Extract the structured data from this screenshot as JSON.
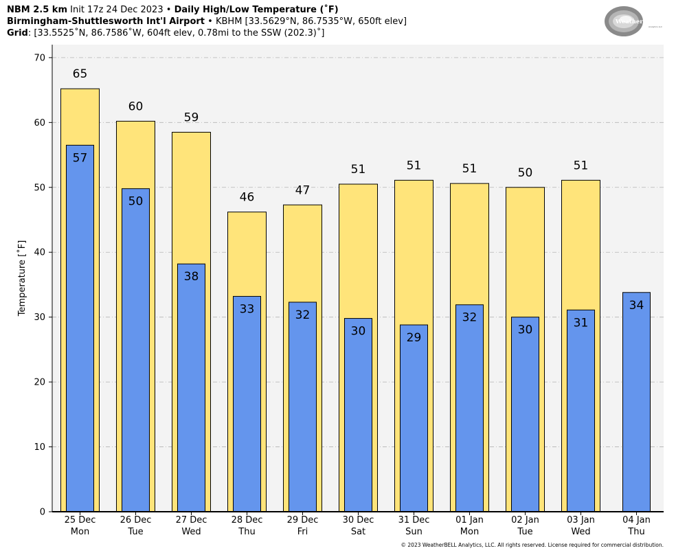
{
  "header": {
    "line1": {
      "model": "NBM 2.5 km",
      "init": "Init 17z 24 Dec 2023",
      "sep": "•",
      "title": "Daily High/Low Temperature (˚F)"
    },
    "line2": {
      "station": "Birmingham-Shuttlesworth Int'l Airport",
      "sep": "•",
      "details": "KBHM [33.5629°N, 86.7535°W, 650ft elev]"
    },
    "line3": {
      "label": "Grid",
      "details": ": [33.5525˚N, 86.7586˚W, 604ft elev, 0.78mi to the SSW (202.3)˚]"
    }
  },
  "logo": {
    "text": "WeatherBELL",
    "sub": "Analytics LLC"
  },
  "copyright": "© 2023 WeatherBELL Analytics, LLC. All rights reserved. License required for commercial distribution.",
  "chart_data": {
    "type": "bar",
    "ylabel": "Temperature [˚F]",
    "ylim": [
      0,
      72
    ],
    "yticks": [
      0,
      10,
      20,
      30,
      40,
      50,
      60,
      70
    ],
    "grid": true,
    "categories": [
      [
        "25 Dec",
        "Mon"
      ],
      [
        "26 Dec",
        "Tue"
      ],
      [
        "27 Dec",
        "Wed"
      ],
      [
        "28 Dec",
        "Thu"
      ],
      [
        "29 Dec",
        "Fri"
      ],
      [
        "30 Dec",
        "Sat"
      ],
      [
        "31 Dec",
        "Sun"
      ],
      [
        "01 Jan",
        "Mon"
      ],
      [
        "02 Jan",
        "Tue"
      ],
      [
        "03 Jan",
        "Wed"
      ],
      [
        "04 Jan",
        "Thu"
      ]
    ],
    "series": [
      {
        "values": [
          65.2,
          60.2,
          58.5,
          46.2,
          47.3,
          50.5,
          51.1,
          50.6,
          50.0,
          51.1,
          null
        ],
        "labels": [
          "65",
          "60",
          "59",
          "46",
          "47",
          "51",
          "51",
          "51",
          "50",
          "51",
          ""
        ]
      },
      {
        "values": [
          56.5,
          49.8,
          38.2,
          33.2,
          32.3,
          29.8,
          28.8,
          31.9,
          30.0,
          31.1,
          33.8
        ],
        "labels": [
          "57",
          "50",
          "38",
          "33",
          "32",
          "30",
          "29",
          "32",
          "30",
          "31",
          "34"
        ]
      }
    ],
    "colors": {
      "high": "#ffe47a",
      "low": "#6495ed",
      "background": "#f3f3f3",
      "grid": "#b3b3b3"
    }
  }
}
